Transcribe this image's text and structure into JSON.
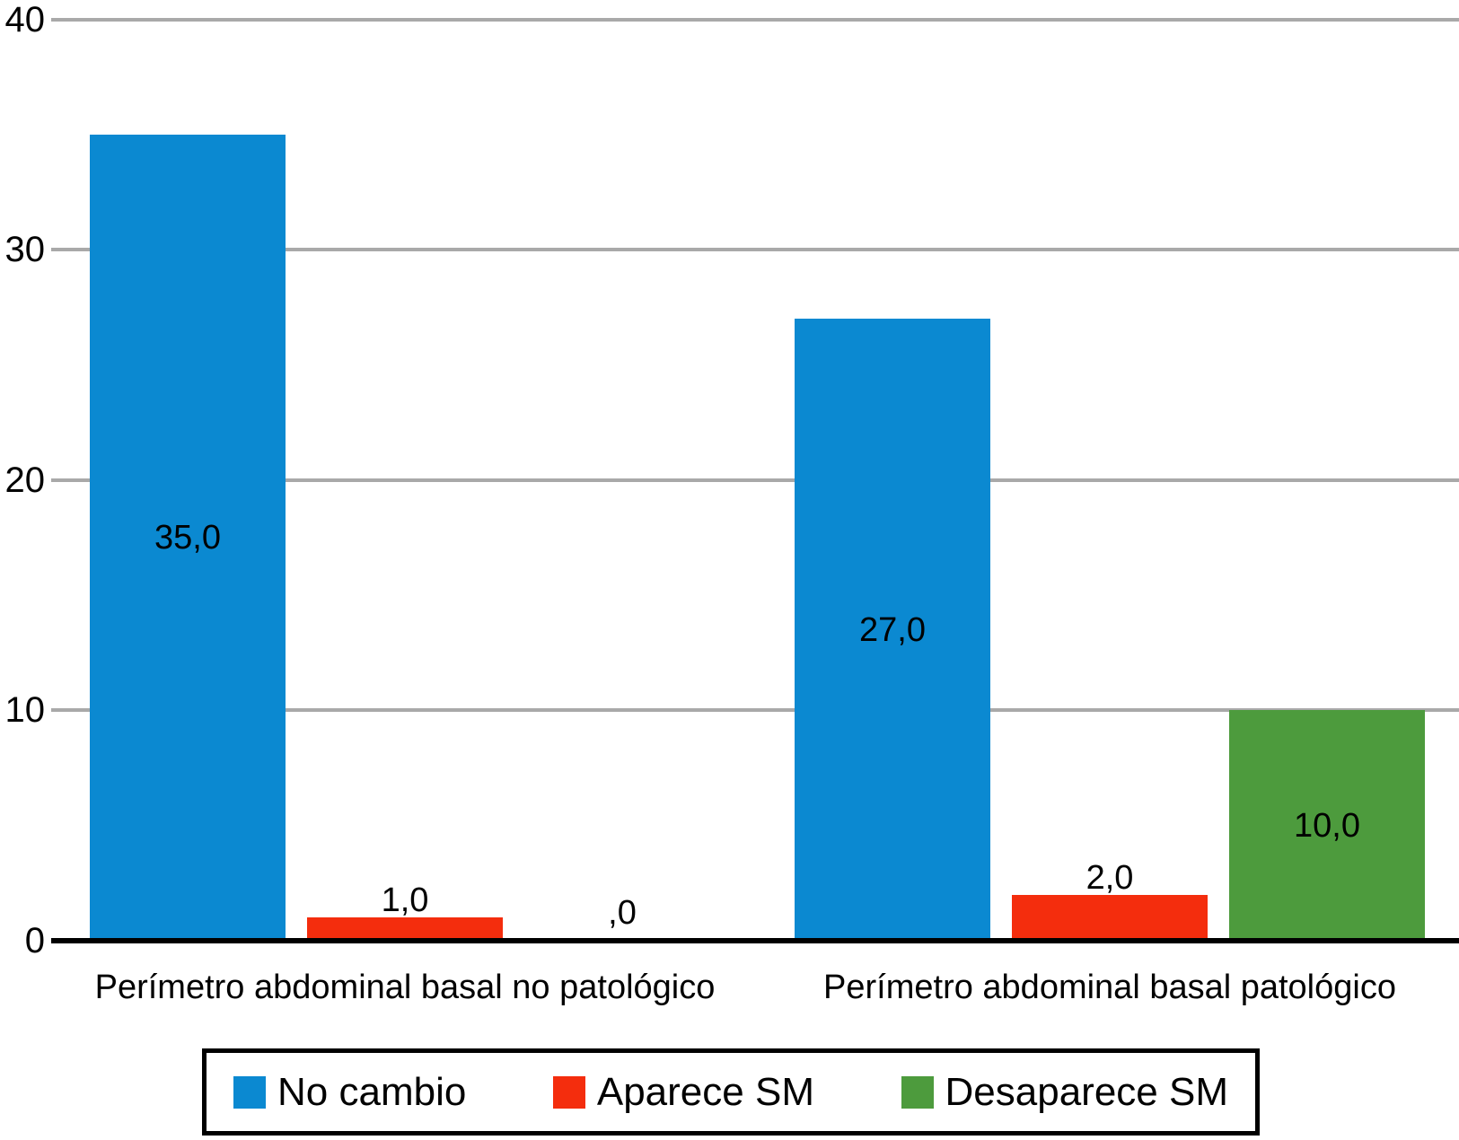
{
  "chart_data": {
    "type": "bar",
    "title": "",
    "xlabel": "",
    "ylabel": "",
    "categories": [
      "Perímetro abdominal basal no patológico",
      "Perímetro abdominal basal patológico"
    ],
    "series": [
      {
        "name": "No cambio",
        "color": "#0b89d1",
        "values": [
          35,
          27
        ],
        "labels": [
          "35,0",
          "27,0"
        ]
      },
      {
        "name": "Aparece SM",
        "color": "#f42d0d",
        "values": [
          1,
          2
        ],
        "labels": [
          "1,0",
          "2,0"
        ]
      },
      {
        "name": "Desaparece SM",
        "color": "#4d9b3d",
        "values": [
          0,
          10
        ],
        "labels": [
          ",0",
          "10,0"
        ]
      }
    ],
    "ylim": [
      0,
      40
    ],
    "yticks": [
      0,
      10,
      20,
      30,
      40
    ],
    "grid": true,
    "legend_position": "bottom",
    "decimal_separator": ","
  },
  "colors": {
    "background": "#ffffff",
    "gridline": "#a9a9a9",
    "axis": "#000000",
    "text": "#000000",
    "legend_border": "#000000"
  }
}
